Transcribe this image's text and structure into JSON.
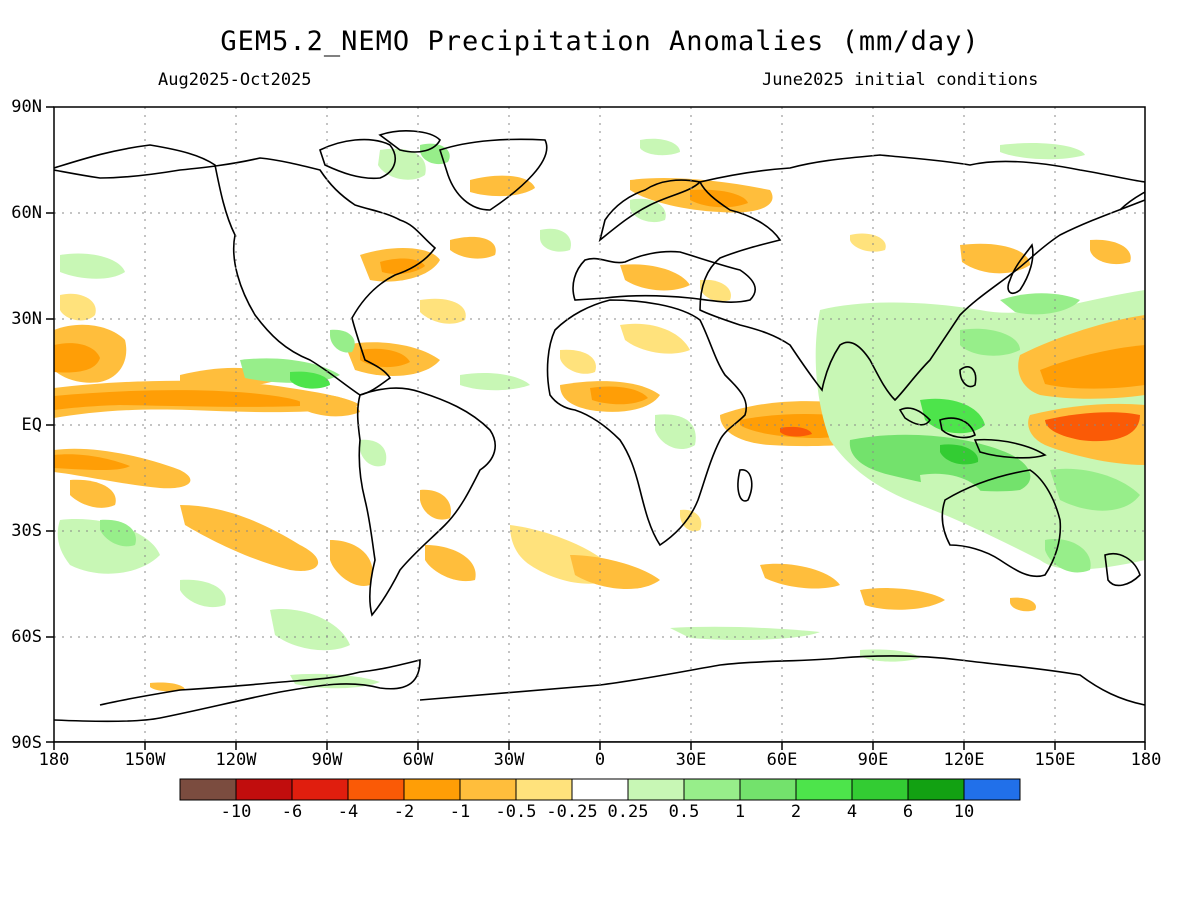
{
  "title": "GEM5.2_NEMO Precipitation Anomalies (mm/day)",
  "period": "Aug2025-Oct2025",
  "initial_conditions": "June2025 initial conditions",
  "lat_labels": [
    "90N",
    "60N",
    "30N",
    "EQ",
    "30S",
    "60S",
    "90S"
  ],
  "lon_labels": [
    "180",
    "150W",
    "120W",
    "90W",
    "60W",
    "30W",
    "0",
    "30E",
    "60E",
    "90E",
    "120E",
    "150E",
    "180"
  ],
  "colorbar": {
    "colors": [
      "#7b4c3f",
      "#c10d0d",
      "#e01e0e",
      "#fa5a06",
      "#ff9e06",
      "#ffbe3c",
      "#ffe27c",
      "#ffffff",
      "#c8f7b5",
      "#97ee8a",
      "#73e26c",
      "#4de44b",
      "#33cc33",
      "#12a112",
      "#2170ea"
    ],
    "labels": [
      "-10",
      "-6",
      "-4",
      "-2",
      "-1",
      "-0.5",
      "-0.25",
      "0.25",
      "0.5",
      "1",
      "2",
      "4",
      "6",
      "10"
    ]
  }
}
